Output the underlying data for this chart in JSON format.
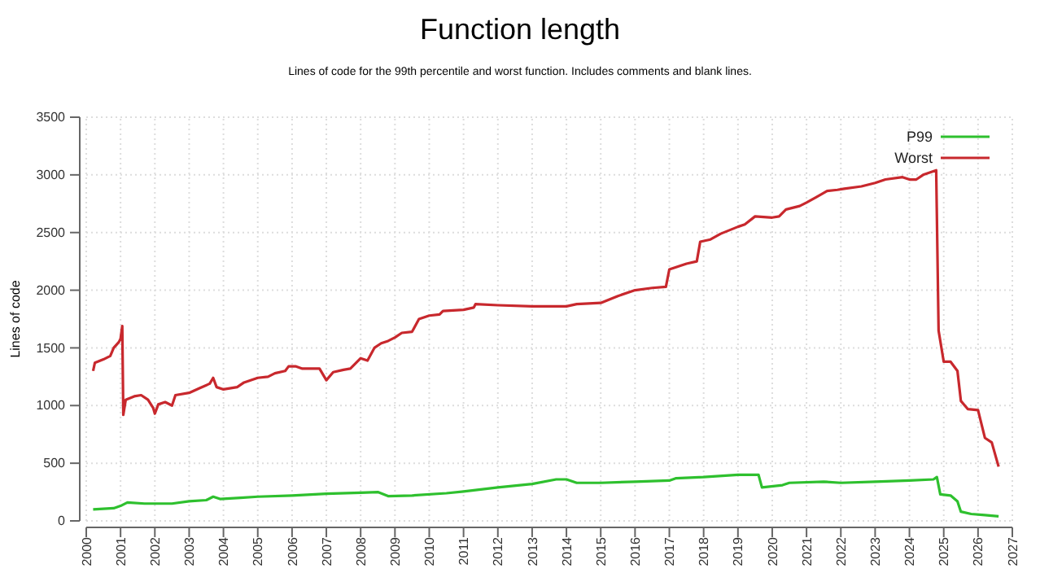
{
  "chart_data": {
    "type": "line",
    "title": "Function length",
    "subtitle": "Lines of code for the 99th percentile and worst function. Includes comments and blank lines.",
    "ylabel": "Lines of code",
    "xlim": [
      2000,
      2027
    ],
    "xticks": [
      2000,
      2001,
      2002,
      2003,
      2004,
      2005,
      2006,
      2007,
      2008,
      2009,
      2010,
      2011,
      2012,
      2013,
      2014,
      2015,
      2016,
      2017,
      2018,
      2019,
      2020,
      2021,
      2022,
      2023,
      2024,
      2025,
      2026,
      2027
    ],
    "ylim": [
      0,
      3500
    ],
    "yticks": [
      0,
      500,
      1000,
      1500,
      2000,
      2500,
      3000,
      3500
    ],
    "grid": true,
    "legend": "top right",
    "marker": "none",
    "line_style": "solid",
    "series": [
      {
        "name": "P99",
        "color": "#2ec02e",
        "x": [
          2000.2,
          2000.8,
          2001.0,
          2001.2,
          2001.7,
          2002.5,
          2003,
          2003.5,
          2003.7,
          2003.9,
          2004.5,
          2005,
          2006,
          2007,
          2008,
          2008.5,
          2008.8,
          2009.5,
          2010.5,
          2011,
          2012,
          2013,
          2013.7,
          2014.0,
          2014.3,
          2015,
          2016,
          2017,
          2017.2,
          2018,
          2019,
          2019.6,
          2019.7,
          2020.3,
          2020.5,
          2021.5,
          2022,
          2023,
          2024,
          2024.7,
          2024.8,
          2024.9,
          2025.2,
          2025.4,
          2025.5,
          2025.8,
          2026.2,
          2026.6
        ],
        "values": [
          100,
          110,
          130,
          160,
          150,
          150,
          170,
          180,
          210,
          190,
          200,
          210,
          220,
          235,
          245,
          250,
          215,
          220,
          240,
          255,
          290,
          320,
          360,
          360,
          330,
          330,
          340,
          350,
          370,
          380,
          400,
          400,
          290,
          310,
          330,
          340,
          330,
          340,
          350,
          360,
          380,
          230,
          220,
          170,
          80,
          60,
          50,
          40
        ]
      },
      {
        "name": "Worst",
        "color": "#c8282d",
        "x": [
          2000.2,
          2000.25,
          2000.5,
          2000.7,
          2000.8,
          2000.95,
          2001.0,
          2001.05,
          2001.08,
          2001.15,
          2001.4,
          2001.6,
          2001.8,
          2001.95,
          2002.0,
          2002.1,
          2002.3,
          2002.5,
          2002.6,
          2003.0,
          2003.3,
          2003.6,
          2003.7,
          2003.8,
          2004.0,
          2004.4,
          2004.6,
          2005.0,
          2005.3,
          2005.5,
          2005.8,
          2005.9,
          2006.1,
          2006.3,
          2006.8,
          2007.0,
          2007.2,
          2007.5,
          2007.7,
          2008.0,
          2008.2,
          2008.4,
          2008.6,
          2008.8,
          2009.0,
          2009.2,
          2009.5,
          2009.7,
          2010.0,
          2010.3,
          2010.4,
          2011.0,
          2011.3,
          2011.35,
          2012,
          2013,
          2014,
          2014.3,
          2015,
          2015.5,
          2016,
          2016.5,
          2016.9,
          2017.0,
          2017.5,
          2017.8,
          2017.9,
          2018.2,
          2018.5,
          2019.0,
          2019.2,
          2019.5,
          2020.0,
          2020.2,
          2020.4,
          2020.8,
          2021.0,
          2021.3,
          2021.6,
          2021.9,
          2022.1,
          2022.6,
          2023.0,
          2023.3,
          2023.8,
          2024.0,
          2024.2,
          2024.4,
          2024.78,
          2024.85,
          2025.0,
          2025.2,
          2025.4,
          2025.5,
          2025.7,
          2026.0,
          2026.2,
          2026.4,
          2026.6
        ],
        "values": [
          1300,
          1370,
          1400,
          1430,
          1500,
          1550,
          1580,
          1690,
          920,
          1050,
          1080,
          1090,
          1050,
          980,
          930,
          1010,
          1030,
          1000,
          1090,
          1110,
          1150,
          1190,
          1240,
          1160,
          1140,
          1160,
          1200,
          1240,
          1250,
          1280,
          1300,
          1340,
          1340,
          1320,
          1320,
          1220,
          1290,
          1310,
          1320,
          1410,
          1390,
          1500,
          1540,
          1560,
          1590,
          1630,
          1640,
          1750,
          1780,
          1790,
          1820,
          1830,
          1850,
          1880,
          1870,
          1860,
          1860,
          1880,
          1890,
          1950,
          2000,
          2020,
          2030,
          2180,
          2230,
          2250,
          2420,
          2440,
          2490,
          2550,
          2570,
          2640,
          2630,
          2640,
          2700,
          2730,
          2760,
          2810,
          2860,
          2870,
          2880,
          2900,
          2930,
          2960,
          2980,
          2960,
          2960,
          3000,
          3040,
          1650,
          1380,
          1380,
          1300,
          1040,
          970,
          960,
          720,
          680,
          470
        ]
      }
    ]
  }
}
